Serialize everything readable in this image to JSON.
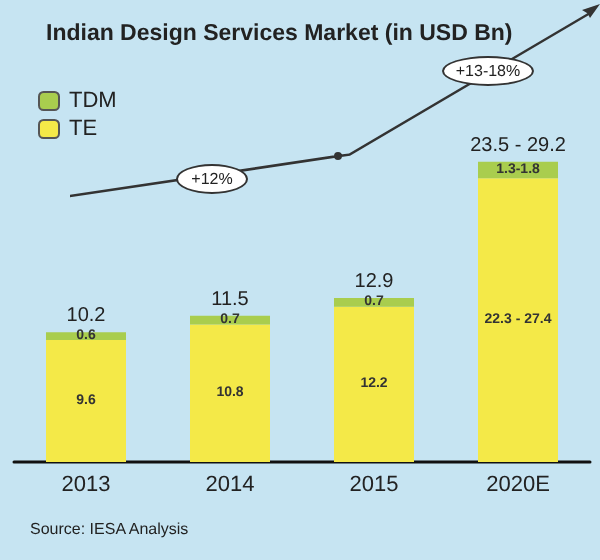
{
  "chart_data": {
    "type": "bar",
    "stacked": true,
    "title": "Indian Design Services Market (in USD Bn)",
    "categories": [
      "2013",
      "2014",
      "2015",
      "2020E"
    ],
    "series": [
      {
        "name": "TE",
        "color": "#f4e948",
        "values": [
          9.6,
          10.8,
          12.2,
          22.3
        ],
        "value_labels": [
          "9.6",
          "10.8",
          "12.2",
          "22.3 - 27.4"
        ]
      },
      {
        "name": "TDM",
        "color": "#a9cd4e",
        "values": [
          0.6,
          0.7,
          0.7,
          1.3
        ],
        "value_labels": [
          "0.6",
          "0.7",
          "0.7",
          "1.3-1.8"
        ]
      }
    ],
    "totals": [
      "10.2",
      "11.5",
      "12.9",
      "23.5 - 29.2"
    ],
    "legend": "top left",
    "annotations": [
      "+12%",
      "+13-18%",
      "Source: IESA Analysis"
    ]
  }
}
